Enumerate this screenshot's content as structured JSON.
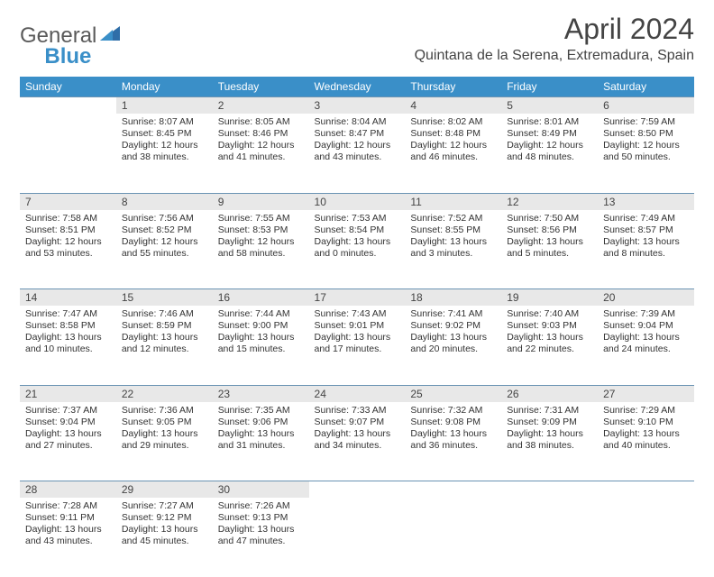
{
  "logo": {
    "part1": "General",
    "part2": "Blue"
  },
  "title": "April 2024",
  "location": "Quintana de la Serena, Extremadura, Spain",
  "colors": {
    "header_bg": "#3a8fc8",
    "header_text": "#ffffff",
    "daynum_bg": "#e8e8e8",
    "rule": "#6a93b3",
    "text": "#333333",
    "logo_gray": "#5a5a5a",
    "logo_blue": "#3a8fc8"
  },
  "weekdays": [
    "Sunday",
    "Monday",
    "Tuesday",
    "Wednesday",
    "Thursday",
    "Friday",
    "Saturday"
  ],
  "weeks": [
    [
      null,
      {
        "n": "1",
        "sr": "Sunrise: 8:07 AM",
        "ss": "Sunset: 8:45 PM",
        "d1": "Daylight: 12 hours",
        "d2": "and 38 minutes."
      },
      {
        "n": "2",
        "sr": "Sunrise: 8:05 AM",
        "ss": "Sunset: 8:46 PM",
        "d1": "Daylight: 12 hours",
        "d2": "and 41 minutes."
      },
      {
        "n": "3",
        "sr": "Sunrise: 8:04 AM",
        "ss": "Sunset: 8:47 PM",
        "d1": "Daylight: 12 hours",
        "d2": "and 43 minutes."
      },
      {
        "n": "4",
        "sr": "Sunrise: 8:02 AM",
        "ss": "Sunset: 8:48 PM",
        "d1": "Daylight: 12 hours",
        "d2": "and 46 minutes."
      },
      {
        "n": "5",
        "sr": "Sunrise: 8:01 AM",
        "ss": "Sunset: 8:49 PM",
        "d1": "Daylight: 12 hours",
        "d2": "and 48 minutes."
      },
      {
        "n": "6",
        "sr": "Sunrise: 7:59 AM",
        "ss": "Sunset: 8:50 PM",
        "d1": "Daylight: 12 hours",
        "d2": "and 50 minutes."
      }
    ],
    [
      {
        "n": "7",
        "sr": "Sunrise: 7:58 AM",
        "ss": "Sunset: 8:51 PM",
        "d1": "Daylight: 12 hours",
        "d2": "and 53 minutes."
      },
      {
        "n": "8",
        "sr": "Sunrise: 7:56 AM",
        "ss": "Sunset: 8:52 PM",
        "d1": "Daylight: 12 hours",
        "d2": "and 55 minutes."
      },
      {
        "n": "9",
        "sr": "Sunrise: 7:55 AM",
        "ss": "Sunset: 8:53 PM",
        "d1": "Daylight: 12 hours",
        "d2": "and 58 minutes."
      },
      {
        "n": "10",
        "sr": "Sunrise: 7:53 AM",
        "ss": "Sunset: 8:54 PM",
        "d1": "Daylight: 13 hours",
        "d2": "and 0 minutes."
      },
      {
        "n": "11",
        "sr": "Sunrise: 7:52 AM",
        "ss": "Sunset: 8:55 PM",
        "d1": "Daylight: 13 hours",
        "d2": "and 3 minutes."
      },
      {
        "n": "12",
        "sr": "Sunrise: 7:50 AM",
        "ss": "Sunset: 8:56 PM",
        "d1": "Daylight: 13 hours",
        "d2": "and 5 minutes."
      },
      {
        "n": "13",
        "sr": "Sunrise: 7:49 AM",
        "ss": "Sunset: 8:57 PM",
        "d1": "Daylight: 13 hours",
        "d2": "and 8 minutes."
      }
    ],
    [
      {
        "n": "14",
        "sr": "Sunrise: 7:47 AM",
        "ss": "Sunset: 8:58 PM",
        "d1": "Daylight: 13 hours",
        "d2": "and 10 minutes."
      },
      {
        "n": "15",
        "sr": "Sunrise: 7:46 AM",
        "ss": "Sunset: 8:59 PM",
        "d1": "Daylight: 13 hours",
        "d2": "and 12 minutes."
      },
      {
        "n": "16",
        "sr": "Sunrise: 7:44 AM",
        "ss": "Sunset: 9:00 PM",
        "d1": "Daylight: 13 hours",
        "d2": "and 15 minutes."
      },
      {
        "n": "17",
        "sr": "Sunrise: 7:43 AM",
        "ss": "Sunset: 9:01 PM",
        "d1": "Daylight: 13 hours",
        "d2": "and 17 minutes."
      },
      {
        "n": "18",
        "sr": "Sunrise: 7:41 AM",
        "ss": "Sunset: 9:02 PM",
        "d1": "Daylight: 13 hours",
        "d2": "and 20 minutes."
      },
      {
        "n": "19",
        "sr": "Sunrise: 7:40 AM",
        "ss": "Sunset: 9:03 PM",
        "d1": "Daylight: 13 hours",
        "d2": "and 22 minutes."
      },
      {
        "n": "20",
        "sr": "Sunrise: 7:39 AM",
        "ss": "Sunset: 9:04 PM",
        "d1": "Daylight: 13 hours",
        "d2": "and 24 minutes."
      }
    ],
    [
      {
        "n": "21",
        "sr": "Sunrise: 7:37 AM",
        "ss": "Sunset: 9:04 PM",
        "d1": "Daylight: 13 hours",
        "d2": "and 27 minutes."
      },
      {
        "n": "22",
        "sr": "Sunrise: 7:36 AM",
        "ss": "Sunset: 9:05 PM",
        "d1": "Daylight: 13 hours",
        "d2": "and 29 minutes."
      },
      {
        "n": "23",
        "sr": "Sunrise: 7:35 AM",
        "ss": "Sunset: 9:06 PM",
        "d1": "Daylight: 13 hours",
        "d2": "and 31 minutes."
      },
      {
        "n": "24",
        "sr": "Sunrise: 7:33 AM",
        "ss": "Sunset: 9:07 PM",
        "d1": "Daylight: 13 hours",
        "d2": "and 34 minutes."
      },
      {
        "n": "25",
        "sr": "Sunrise: 7:32 AM",
        "ss": "Sunset: 9:08 PM",
        "d1": "Daylight: 13 hours",
        "d2": "and 36 minutes."
      },
      {
        "n": "26",
        "sr": "Sunrise: 7:31 AM",
        "ss": "Sunset: 9:09 PM",
        "d1": "Daylight: 13 hours",
        "d2": "and 38 minutes."
      },
      {
        "n": "27",
        "sr": "Sunrise: 7:29 AM",
        "ss": "Sunset: 9:10 PM",
        "d1": "Daylight: 13 hours",
        "d2": "and 40 minutes."
      }
    ],
    [
      {
        "n": "28",
        "sr": "Sunrise: 7:28 AM",
        "ss": "Sunset: 9:11 PM",
        "d1": "Daylight: 13 hours",
        "d2": "and 43 minutes."
      },
      {
        "n": "29",
        "sr": "Sunrise: 7:27 AM",
        "ss": "Sunset: 9:12 PM",
        "d1": "Daylight: 13 hours",
        "d2": "and 45 minutes."
      },
      {
        "n": "30",
        "sr": "Sunrise: 7:26 AM",
        "ss": "Sunset: 9:13 PM",
        "d1": "Daylight: 13 hours",
        "d2": "and 47 minutes."
      },
      null,
      null,
      null,
      null
    ]
  ]
}
